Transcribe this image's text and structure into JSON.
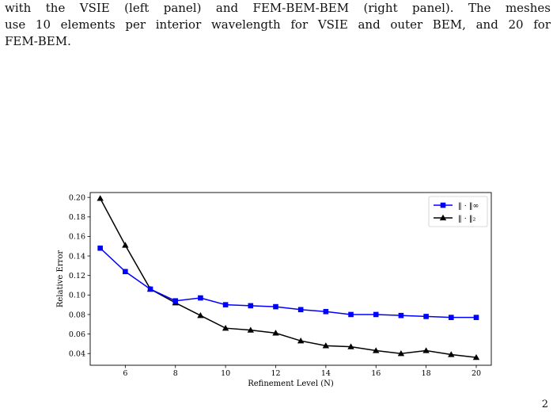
{
  "caption": {
    "lines": [
      "with the VSIE (left panel) and FEM-BEM-BEM (right panel). The meshes",
      "use 10 elements per interior wavelength for VSIE and outer BEM, and 20 for",
      "FEM-BEM."
    ]
  },
  "chart_data": {
    "type": "line",
    "title": "",
    "xlabel": "Refinement Level (N)",
    "ylabel": "Relative Error",
    "xlim": [
      4.6,
      20.6
    ],
    "ylim": [
      0.028,
      0.205
    ],
    "xticks": [
      6,
      8,
      10,
      12,
      14,
      16,
      18,
      20
    ],
    "yticks": [
      0.04,
      0.06,
      0.08,
      0.1,
      0.12,
      0.14,
      0.16,
      0.18,
      0.2
    ],
    "ytick_labels": [
      "0.04",
      "0.06",
      "0.08",
      "0.10",
      "0.12",
      "0.14",
      "0.16",
      "0.18",
      "0.20"
    ],
    "x": [
      5,
      6,
      7,
      8,
      9,
      10,
      11,
      12,
      13,
      14,
      15,
      16,
      17,
      18,
      19,
      20
    ],
    "series": [
      {
        "name": "‖ · ‖∞",
        "color": "#0000ff",
        "marker": "square",
        "values": [
          0.148,
          0.124,
          0.106,
          0.094,
          0.097,
          0.09,
          0.089,
          0.088,
          0.085,
          0.083,
          0.08,
          0.08,
          0.079,
          0.078,
          0.077,
          0.077
        ]
      },
      {
        "name": "‖ · ‖₂",
        "color": "#000000",
        "marker": "triangle",
        "values": [
          0.199,
          0.151,
          0.106,
          0.092,
          0.079,
          0.066,
          0.064,
          0.061,
          0.053,
          0.048,
          0.047,
          0.043,
          0.04,
          0.043,
          0.039,
          0.036
        ]
      }
    ],
    "grid": false,
    "legend_position": "top-right"
  },
  "page_number": "2"
}
